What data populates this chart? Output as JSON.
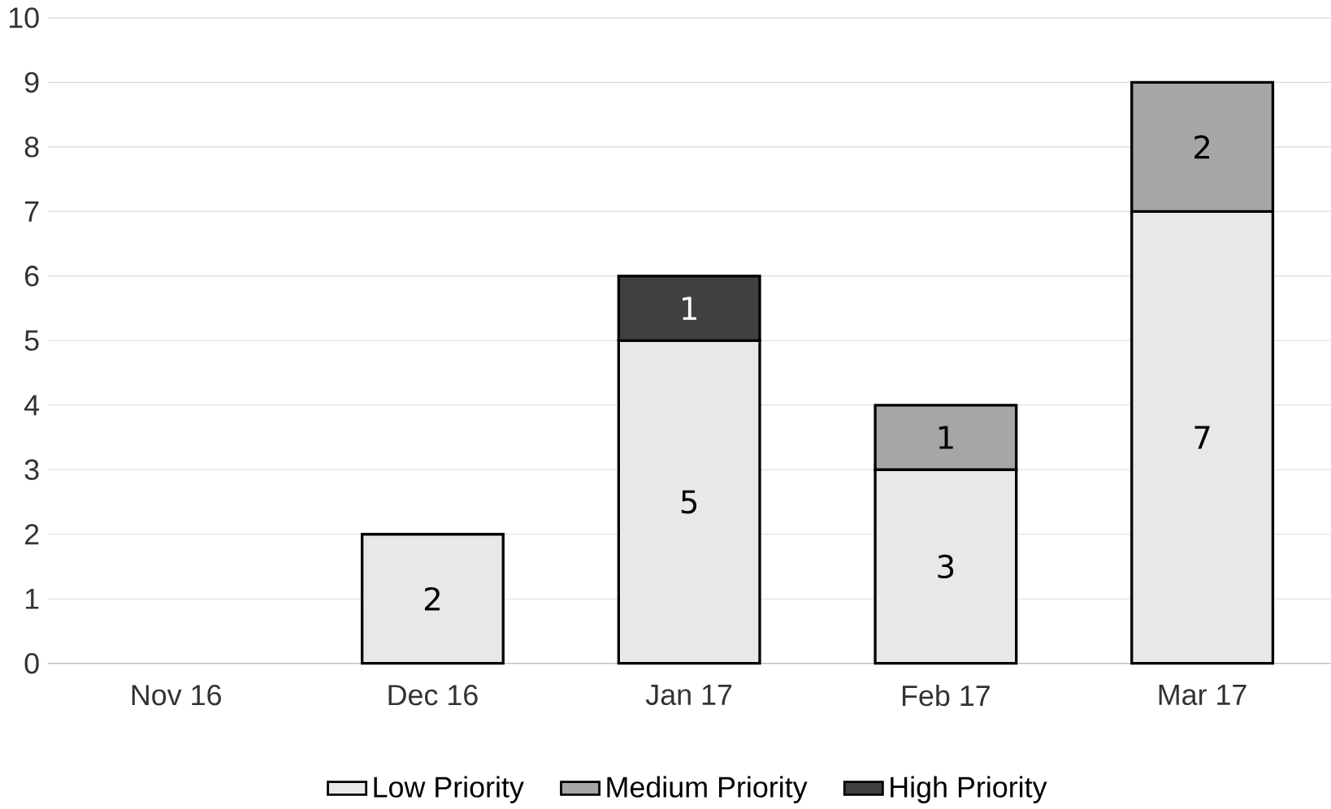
{
  "chart_data": {
    "type": "bar",
    "stacked": true,
    "categories": [
      "Nov 16",
      "Dec 16",
      "Jan 17",
      "Feb 17",
      "Mar 17"
    ],
    "series": [
      {
        "name": "Low Priority",
        "color": "#e8e8e8",
        "values": [
          null,
          2,
          5,
          3,
          7
        ]
      },
      {
        "name": "Medium Priority",
        "color": "#a6a6a6",
        "values": [
          null,
          null,
          null,
          1,
          2
        ]
      },
      {
        "name": "High Priority",
        "color": "#404040",
        "values": [
          null,
          null,
          1,
          null,
          null
        ]
      }
    ],
    "ylim": [
      0,
      10
    ],
    "yticks": [
      0,
      1,
      2,
      3,
      4,
      5,
      6,
      7,
      8,
      9,
      10
    ],
    "grid": "y",
    "legend": "bottom",
    "data_labels": true
  }
}
